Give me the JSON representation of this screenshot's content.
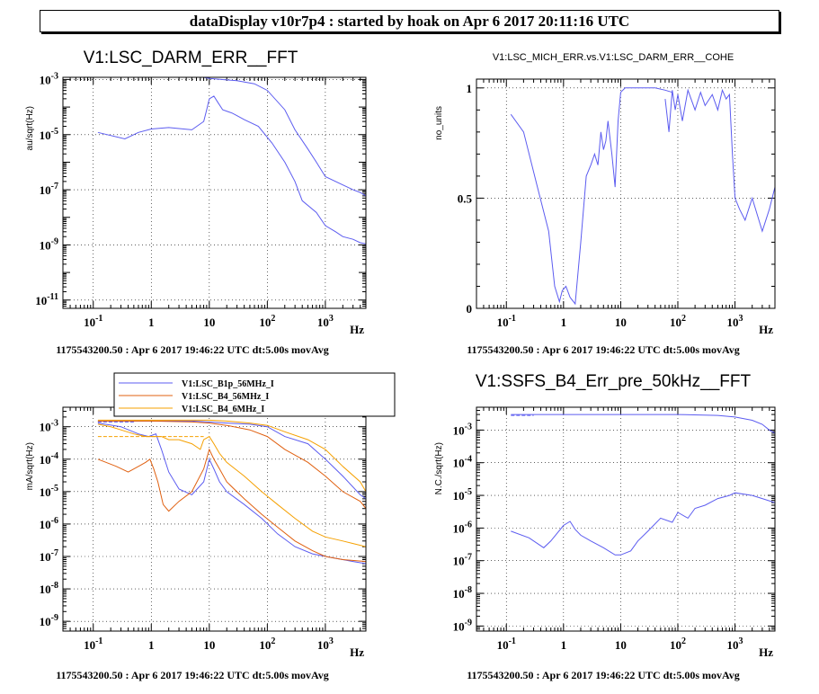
{
  "page_title": "dataDisplay v10r7p4 : started by hoak on Apr  6 2017 20:11:16 UTC",
  "chart_data": [
    {
      "type": "line",
      "title": "V1:LSC_DARM_ERR__FFT",
      "ylabel": "au/sqrt(Hz)",
      "xlabel": "Hz",
      "xscale": "log",
      "yscale": "log",
      "xlim": [
        0.03,
        5000
      ],
      "ylim": [
        5e-12,
        0.0012
      ],
      "xticks": [
        {
          "v": 0.1,
          "label": "10^-1"
        },
        {
          "v": 1,
          "label": "1"
        },
        {
          "v": 10,
          "label": "10"
        },
        {
          "v": 100,
          "label": "10^2"
        },
        {
          "v": 1000,
          "label": "10^3"
        }
      ],
      "yticks": [
        {
          "v": 1e-11,
          "label": "10^-11"
        },
        {
          "v": 1e-09,
          "label": "10^-9"
        },
        {
          "v": 1e-07,
          "label": "10^-7"
        },
        {
          "v": 1e-05,
          "label": "10^-5"
        },
        {
          "v": 0.001,
          "label": "10^-3"
        }
      ],
      "footer": "1175543200.50 : Apr  6 2017 19:46:22 UTC dt:5.00s movAvg",
      "grid": true,
      "series": [
        {
          "color": "#5c5cf0",
          "style": "solid",
          "x": [
            0.12,
            0.35,
            0.6,
            1,
            2,
            5,
            8,
            9,
            10,
            12,
            14,
            17,
            25,
            40,
            70,
            120,
            200,
            300,
            400,
            700,
            1000,
            1500,
            2000,
            3000,
            4000,
            5000
          ],
          "y": [
            1.2e-05,
            7e-06,
            1.2e-05,
            1.6e-05,
            1.8e-05,
            1.5e-05,
            3e-05,
            8e-05,
            0.0002,
            0.00025,
            0.00015,
            8e-05,
            6e-05,
            3.5e-05,
            2e-05,
            5e-06,
            1e-06,
            2e-07,
            4e-08,
            1.5e-08,
            5e-09,
            3e-09,
            2e-09,
            1.6e-09,
            1.2e-09,
            1.1e-09
          ]
        },
        {
          "color": "#5c5cf0",
          "style": "solid",
          "x": [
            0.12,
            1,
            5,
            8,
            10,
            30,
            60,
            100,
            200,
            300,
            500,
            700,
            1000,
            2000,
            3000,
            4000,
            5000
          ],
          "y": [
            0.0013,
            0.0013,
            0.0013,
            0.0012,
            0.0011,
            0.0009,
            0.0007,
            0.0004,
            8e-05,
            1.5e-05,
            3e-06,
            1e-06,
            3e-07,
            1.5e-07,
            1e-07,
            8e-08,
            6e-08
          ]
        },
        {
          "color": "#5c5cf0",
          "style": "dashed",
          "x": [
            0.12,
            1,
            8
          ],
          "y": [
            0.0012,
            0.0012,
            0.0012
          ]
        }
      ]
    },
    {
      "type": "line",
      "title": "V1:LSC_MICH_ERR.vs.V1:LSC_DARM_ERR__COHE",
      "ylabel": "no_units",
      "xlabel": "Hz",
      "xscale": "log",
      "yscale": "linear",
      "xlim": [
        0.03,
        5000
      ],
      "ylim": [
        0,
        1.04
      ],
      "xticks": [
        {
          "v": 0.1,
          "label": "10^-1"
        },
        {
          "v": 1,
          "label": "1"
        },
        {
          "v": 10,
          "label": "10"
        },
        {
          "v": 100,
          "label": "10^2"
        },
        {
          "v": 1000,
          "label": "10^3"
        }
      ],
      "yticks": [
        {
          "v": 0,
          "label": "0"
        },
        {
          "v": 0.5,
          "label": "0.5"
        },
        {
          "v": 1,
          "label": "1"
        }
      ],
      "footer": "1175543200.50 : Apr  6 2017 19:46:22 UTC dt:5.00s movAvg",
      "grid": true,
      "series": [
        {
          "color": "#5c5cf0",
          "style": "solid",
          "x": [
            0.12,
            0.2,
            0.35,
            0.55,
            0.7,
            0.85,
            0.95,
            1.1,
            1.3,
            1.6,
            2,
            2.5,
            3,
            3.5,
            4,
            4.5,
            5,
            5.5,
            6,
            7,
            8,
            9,
            10,
            12,
            20,
            40,
            60,
            80
          ],
          "y": [
            0.88,
            0.8,
            0.55,
            0.35,
            0.1,
            0.03,
            0.08,
            0.1,
            0.05,
            0.02,
            0.3,
            0.6,
            0.65,
            0.7,
            0.65,
            0.8,
            0.72,
            0.76,
            0.85,
            0.7,
            0.55,
            0.85,
            0.98,
            1.0,
            1.0,
            1.0,
            0.99,
            0.98
          ]
        },
        {
          "color": "#5c5cf0",
          "style": "solid",
          "x": [
            60,
            70,
            80,
            90,
            100,
            120,
            150,
            200,
            250,
            300,
            400,
            500,
            600,
            700,
            800,
            900,
            1000,
            1200,
            1500,
            2000,
            3000,
            4000,
            5000
          ],
          "y": [
            0.95,
            0.8,
            0.99,
            0.9,
            0.97,
            0.85,
            0.99,
            0.9,
            0.98,
            0.92,
            0.97,
            0.9,
            0.99,
            0.95,
            0.97,
            0.7,
            0.5,
            0.45,
            0.4,
            0.5,
            0.35,
            0.45,
            0.55
          ]
        }
      ]
    },
    {
      "type": "line",
      "title": "",
      "ylabel": "mA/sqrt(Hz)",
      "xlabel": "Hz",
      "xscale": "log",
      "yscale": "log",
      "xlim": [
        0.03,
        5000
      ],
      "ylim": [
        5e-10,
        0.004
      ],
      "xticks": [
        {
          "v": 0.1,
          "label": "10^-1"
        },
        {
          "v": 1,
          "label": "1"
        },
        {
          "v": 10,
          "label": "10"
        },
        {
          "v": 100,
          "label": "10^2"
        },
        {
          "v": 1000,
          "label": "10^3"
        }
      ],
      "yticks": [
        {
          "v": 1e-09,
          "label": "10^-9"
        },
        {
          "v": 1e-08,
          "label": "10^-8"
        },
        {
          "v": 1e-07,
          "label": "10^-7"
        },
        {
          "v": 1e-06,
          "label": "10^-6"
        },
        {
          "v": 1e-05,
          "label": "10^-5"
        },
        {
          "v": 0.0001,
          "label": "10^-4"
        },
        {
          "v": 0.001,
          "label": "10^-3"
        }
      ],
      "footer": "1175543200.50 : Apr  6 2017 19:46:22 UTC dt:5.00s movAvg",
      "grid": true,
      "legend": [
        "V1:LSC_B1p_56MHz_I",
        "V1:LSC_B4_56MHz_I",
        "V1:LSC_B4_6MHz_I"
      ],
      "series": [
        {
          "name": "V1:LSC_B1p_56MHz_I",
          "color": "#5c5cf0",
          "style": "solid",
          "x": [
            0.12,
            0.3,
            0.6,
            0.9,
            1.2,
            1.5,
            2,
            3,
            5,
            8,
            10,
            12,
            15,
            20,
            40,
            80,
            150,
            300,
            600,
            1000,
            2000,
            3000,
            5000
          ],
          "y": [
            0.0013,
            0.001,
            0.0006,
            0.0005,
            0.0006,
            0.0002,
            4e-05,
            1.2e-05,
            8e-06,
            2e-05,
            0.0001,
            5e-05,
            2e-05,
            1e-05,
            4e-06,
            1.5e-06,
            5e-07,
            2e-07,
            1.2e-07,
            1e-07,
            8e-08,
            7e-08,
            6e-08
          ]
        },
        {
          "name": "V1:LSC_B4_56MHz_I",
          "color": "#e06010",
          "style": "solid",
          "x": [
            0.12,
            0.25,
            0.4,
            0.6,
            0.8,
            0.95,
            1.1,
            1.3,
            1.6,
            2,
            3,
            5,
            8,
            10,
            12,
            15,
            20,
            40,
            80,
            150,
            300,
            600,
            1000,
            2000,
            5000
          ],
          "y": [
            0.0001,
            6e-05,
            4e-05,
            6e-05,
            8e-05,
            0.0001,
            5e-05,
            2e-05,
            4e-06,
            2.5e-06,
            5e-06,
            1e-05,
            5e-05,
            0.0002,
            0.0001,
            5e-05,
            2e-05,
            6e-06,
            2e-06,
            8e-07,
            3e-07,
            1.5e-07,
            1e-07,
            8e-08,
            7e-08
          ]
        },
        {
          "name": "V1:LSC_B4_6MHz_I",
          "color": "#f5a000",
          "style": "solid",
          "x": [
            0.12,
            0.2,
            0.3,
            0.5,
            0.8,
            1,
            1.5,
            2,
            3,
            5,
            7,
            8,
            10,
            12,
            15,
            20,
            40,
            80,
            150,
            300,
            600,
            1000,
            2000,
            3000,
            5000
          ],
          "y": [
            0.0012,
            0.001,
            0.0008,
            0.0006,
            0.0005,
            0.0005,
            0.0005,
            0.0004,
            0.0004,
            0.0003,
            0.0002,
            0.0004,
            0.0005,
            0.0003,
            0.00015,
            8e-05,
            3e-05,
            1e-05,
            4e-06,
            1.5e-06,
            6e-07,
            4e-07,
            3e-07,
            2.5e-07,
            2e-07
          ]
        },
        {
          "name": "",
          "color": "#5c5cf0",
          "style": "solid",
          "x": [
            0.12,
            1,
            5,
            10,
            20,
            50,
            100,
            200,
            500,
            1000,
            2000,
            4000,
            5000
          ],
          "y": [
            0.0015,
            0.0015,
            0.0015,
            0.0014,
            0.0013,
            0.0012,
            0.001,
            0.0005,
            0.0003,
            0.0001,
            3e-05,
            8e-06,
            6e-06
          ]
        },
        {
          "name": "",
          "color": "#e06010",
          "style": "solid",
          "x": [
            0.12,
            1,
            5,
            10,
            20,
            50,
            100,
            200,
            500,
            1000,
            2000,
            4000,
            5000
          ],
          "y": [
            0.0015,
            0.0015,
            0.0014,
            0.0013,
            0.0011,
            0.0008,
            0.0005,
            0.0002,
            8e-05,
            3e-05,
            1e-05,
            5e-06,
            3e-06
          ]
        },
        {
          "name": "",
          "color": "#f5a000",
          "style": "solid",
          "x": [
            0.12,
            1,
            5,
            10,
            20,
            50,
            100,
            200,
            500,
            1000,
            2000,
            4000,
            5000
          ],
          "y": [
            0.0016,
            0.0016,
            0.0016,
            0.0016,
            0.0015,
            0.0013,
            0.0011,
            0.0007,
            0.0004,
            0.0002,
            6e-05,
            2e-05,
            1e-05
          ]
        },
        {
          "name": "",
          "color": "#f5a000",
          "style": "dashed",
          "x": [
            0.12,
            1,
            8
          ],
          "y": [
            0.0005,
            0.0005,
            0.0005
          ]
        },
        {
          "name": "",
          "color": "#5c5cf0",
          "style": "dashed",
          "x": [
            0.12,
            0.5
          ],
          "y": [
            0.0014,
            0.0014
          ]
        }
      ]
    },
    {
      "type": "line",
      "title": "V1:SSFS_B4_Err_pre_50kHz__FFT",
      "ylabel": "N.C./sqrt(Hz)",
      "xlabel": "Hz",
      "xscale": "log",
      "yscale": "log",
      "xlim": [
        0.03,
        5000
      ],
      "ylim": [
        7e-10,
        0.005
      ],
      "xticks": [
        {
          "v": 0.1,
          "label": "10^-1"
        },
        {
          "v": 1,
          "label": "1"
        },
        {
          "v": 10,
          "label": "10"
        },
        {
          "v": 100,
          "label": "10^2"
        },
        {
          "v": 1000,
          "label": "10^3"
        }
      ],
      "yticks": [
        {
          "v": 1e-09,
          "label": "10^-9"
        },
        {
          "v": 1e-08,
          "label": "10^-8"
        },
        {
          "v": 1e-07,
          "label": "10^-7"
        },
        {
          "v": 1e-06,
          "label": "10^-6"
        },
        {
          "v": 1e-05,
          "label": "10^-5"
        },
        {
          "v": 0.0001,
          "label": "10^-4"
        },
        {
          "v": 0.001,
          "label": "10^-3"
        }
      ],
      "footer": "1175543200.50 : Apr  6 2017 19:46:22 UTC dt:5.00s movAvg",
      "grid": true,
      "series": [
        {
          "color": "#5c5cf0",
          "style": "solid",
          "x": [
            0.12,
            0.25,
            0.45,
            0.6,
            1,
            1.3,
            1.6,
            2,
            3,
            5,
            8,
            10,
            15,
            20,
            30,
            50,
            80,
            100,
            150,
            200,
            300,
            500,
            800,
            1000,
            2000,
            3000,
            5000
          ],
          "y": [
            8e-07,
            5e-07,
            2.5e-07,
            4e-07,
            1.2e-06,
            1.6e-06,
            9e-07,
            6e-07,
            4e-07,
            2.5e-07,
            1.5e-07,
            1.5e-07,
            2e-07,
            4e-07,
            8e-07,
            2e-06,
            1.5e-06,
            3e-06,
            2e-06,
            4e-06,
            5e-06,
            8e-06,
            1e-05,
            1.2e-05,
            1e-05,
            8e-06,
            6e-06
          ]
        },
        {
          "color": "#5c5cf0",
          "style": "solid",
          "x": [
            0.12,
            1,
            10,
            100,
            500,
            1000,
            2000,
            3000,
            4000,
            5000
          ],
          "y": [
            0.003,
            0.003,
            0.003,
            0.003,
            0.0028,
            0.0025,
            0.002,
            0.0015,
            0.001,
            0.0008
          ]
        },
        {
          "color": "#5c5cf0",
          "style": "dashed",
          "x": [
            0.12,
            0.3
          ],
          "y": [
            0.0028,
            0.0028
          ]
        }
      ]
    }
  ]
}
